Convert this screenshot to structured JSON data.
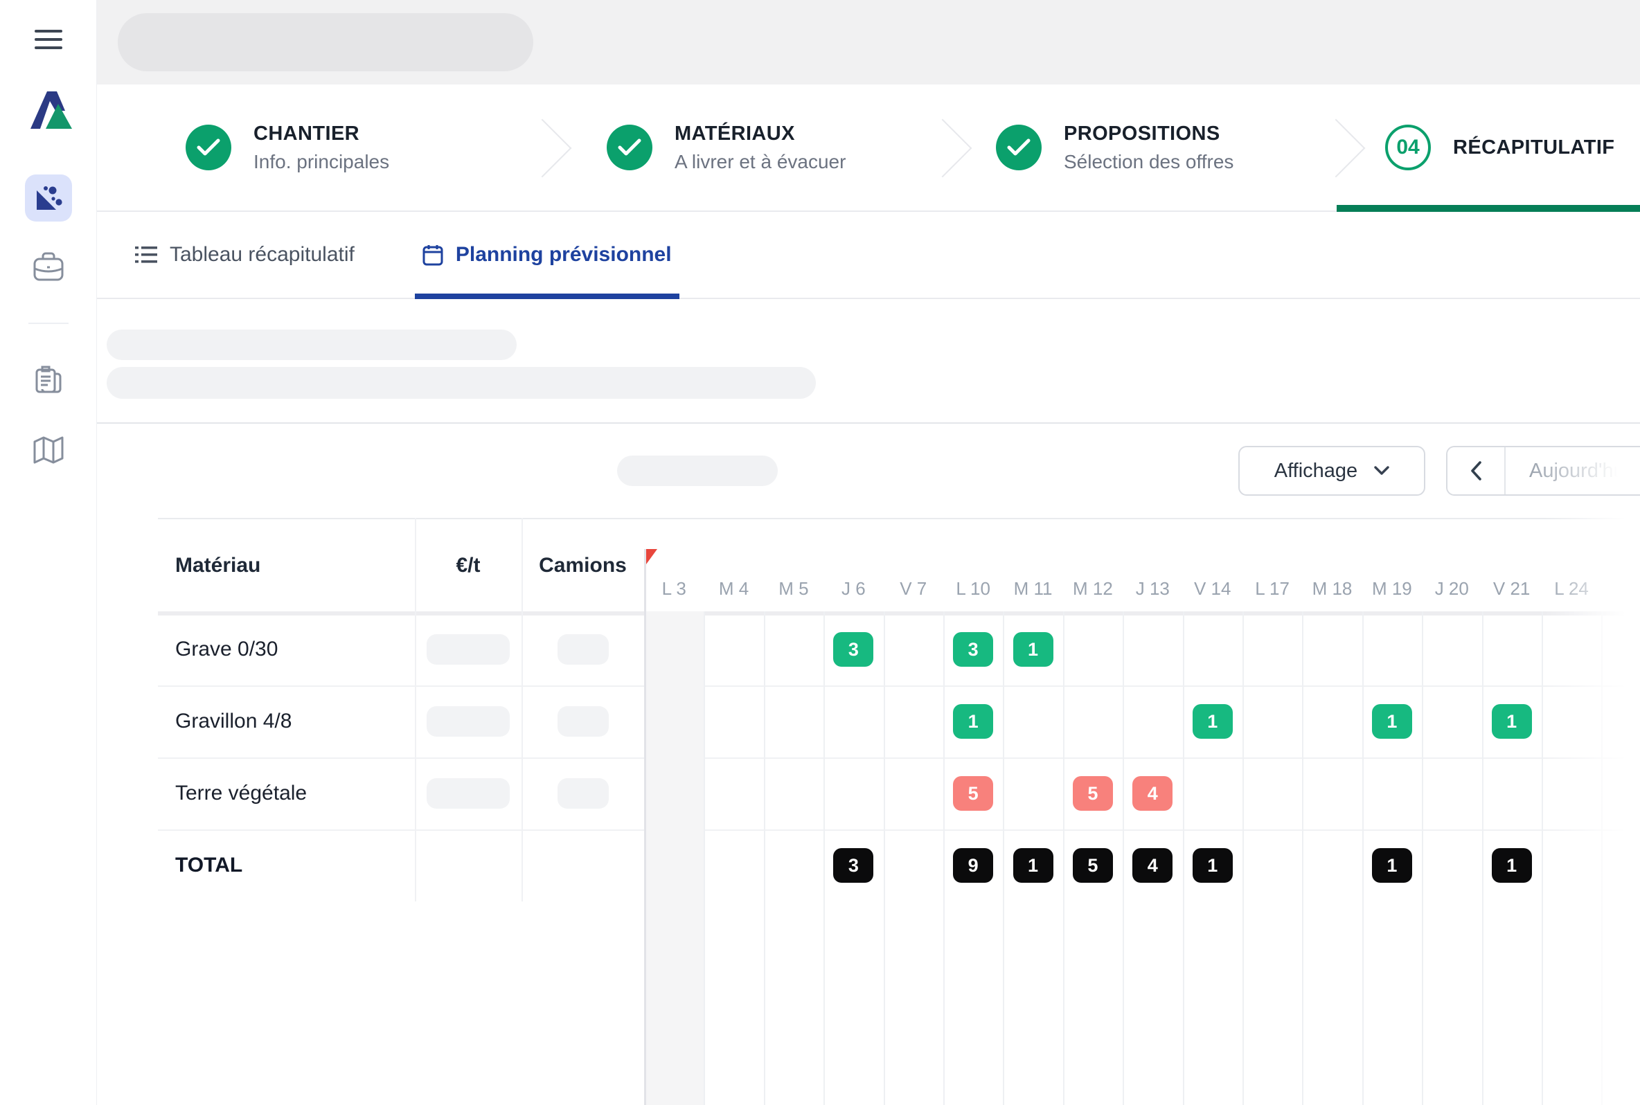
{
  "stepper": {
    "steps": [
      {
        "title": "CHANTIER",
        "subtitle": "Info. principales",
        "state": "done"
      },
      {
        "title": "MATÉRIAUX",
        "subtitle": "A livrer et à évacuer",
        "state": "done"
      },
      {
        "title": "PROPOSITIONS",
        "subtitle": "Sélection des offres",
        "state": "done"
      },
      {
        "title": "RÉCAPITULATIF",
        "subtitle": "",
        "state": "active",
        "number": "04"
      }
    ]
  },
  "tabs": [
    {
      "label": "Tableau récapitulatif",
      "active": false
    },
    {
      "label": "Planning prévisionnel",
      "active": true
    }
  ],
  "toolbar": {
    "display_button": "Affichage",
    "today_button": "Aujourd'hui"
  },
  "planning": {
    "headers": {
      "material": "Matériau",
      "price": "€/t",
      "trucks": "Camions"
    },
    "columns": [
      "L 3",
      "M 4",
      "M 5",
      "J 6",
      "V 7",
      "L 10",
      "M 11",
      "M 12",
      "J 13",
      "V 14",
      "L 17",
      "M 18",
      "M 19",
      "J 20",
      "V 21",
      "L 24"
    ],
    "rows": [
      {
        "name": "Grave 0/30",
        "badge_color": "green",
        "badges": {
          "3": "3",
          "5": "3",
          "6": "1"
        }
      },
      {
        "name": "Gravillon 4/8",
        "badge_color": "green",
        "badges": {
          "5": "1",
          "9": "1",
          "12": "1",
          "14": "1"
        }
      },
      {
        "name": "Terre végétale",
        "badge_color": "red",
        "badges": {
          "5": "5",
          "7": "5",
          "8": "4"
        }
      }
    ],
    "total_row": {
      "name": "TOTAL",
      "badge_color": "black",
      "badges": {
        "3": "3",
        "5": "9",
        "6": "1",
        "7": "5",
        "8": "4",
        "9": "1",
        "12": "1",
        "14": "1"
      }
    }
  },
  "colors": {
    "green": "#17b980",
    "red": "#f8817c",
    "black": "#0b0b0c",
    "step_green": "#0ba06c",
    "active_bar": "#067e57",
    "tab_blue": "#1e429f"
  }
}
